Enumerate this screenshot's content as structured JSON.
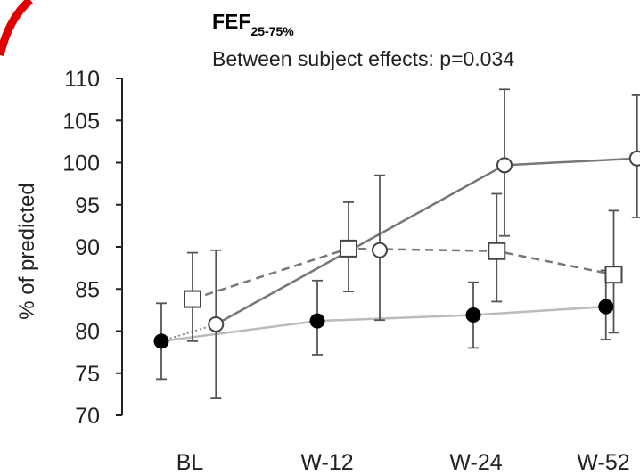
{
  "chart_data": {
    "type": "line",
    "title": "FEF",
    "title_subscript": "25-75%",
    "subtitle": "Between subject effects: p=0.034",
    "xlabel": "",
    "ylabel": "% of predicted",
    "categories": [
      "BL",
      "W-12",
      "W-24",
      "W-52"
    ],
    "ylim": [
      70,
      110
    ],
    "yticks": [
      70,
      75,
      80,
      85,
      90,
      95,
      100,
      105,
      110
    ],
    "grid": false,
    "colors": {
      "accent_mark": "#e00000",
      "solid_line": "#777777",
      "light_line": "#bbbbbb",
      "axis": "#222222"
    },
    "series": [
      {
        "marker": "open-circle",
        "line": "solid",
        "x": [
          0.35,
          2.2,
          3.05
        ],
        "y": [
          80.8,
          99.7,
          100.5
        ],
        "err_low": [
          72.0,
          91.3,
          93.5
        ],
        "err_high": [
          89.6,
          108.7,
          108.0
        ]
      },
      {
        "marker": "open-square",
        "line": "dashed",
        "x": [
          0.2,
          1.2,
          2.15,
          2.9
        ],
        "y": [
          83.8,
          89.8,
          89.5,
          86.7
        ],
        "err_low": [
          78.8,
          84.7,
          83.5,
          79.8
        ],
        "err_high": [
          89.3,
          95.3,
          96.3,
          94.3
        ]
      },
      {
        "marker": "open-circle",
        "line": "none",
        "x": [
          1.4
        ],
        "y": [
          89.6
        ],
        "err_low": [
          81.3
        ],
        "err_high": [
          98.5
        ]
      },
      {
        "marker": "filled-circle",
        "line": "light",
        "x": [
          0.0,
          1.0,
          2.0,
          2.85
        ],
        "y": [
          78.8,
          81.2,
          81.9,
          82.9
        ],
        "err_low": [
          74.3,
          77.2,
          78.0,
          79.0
        ],
        "err_high": [
          83.3,
          86.0,
          85.8,
          87.2
        ]
      }
    ],
    "connector": {
      "style": "dotted",
      "from": [
        0.0,
        78.8
      ],
      "to": [
        0.35,
        80.8
      ]
    }
  }
}
